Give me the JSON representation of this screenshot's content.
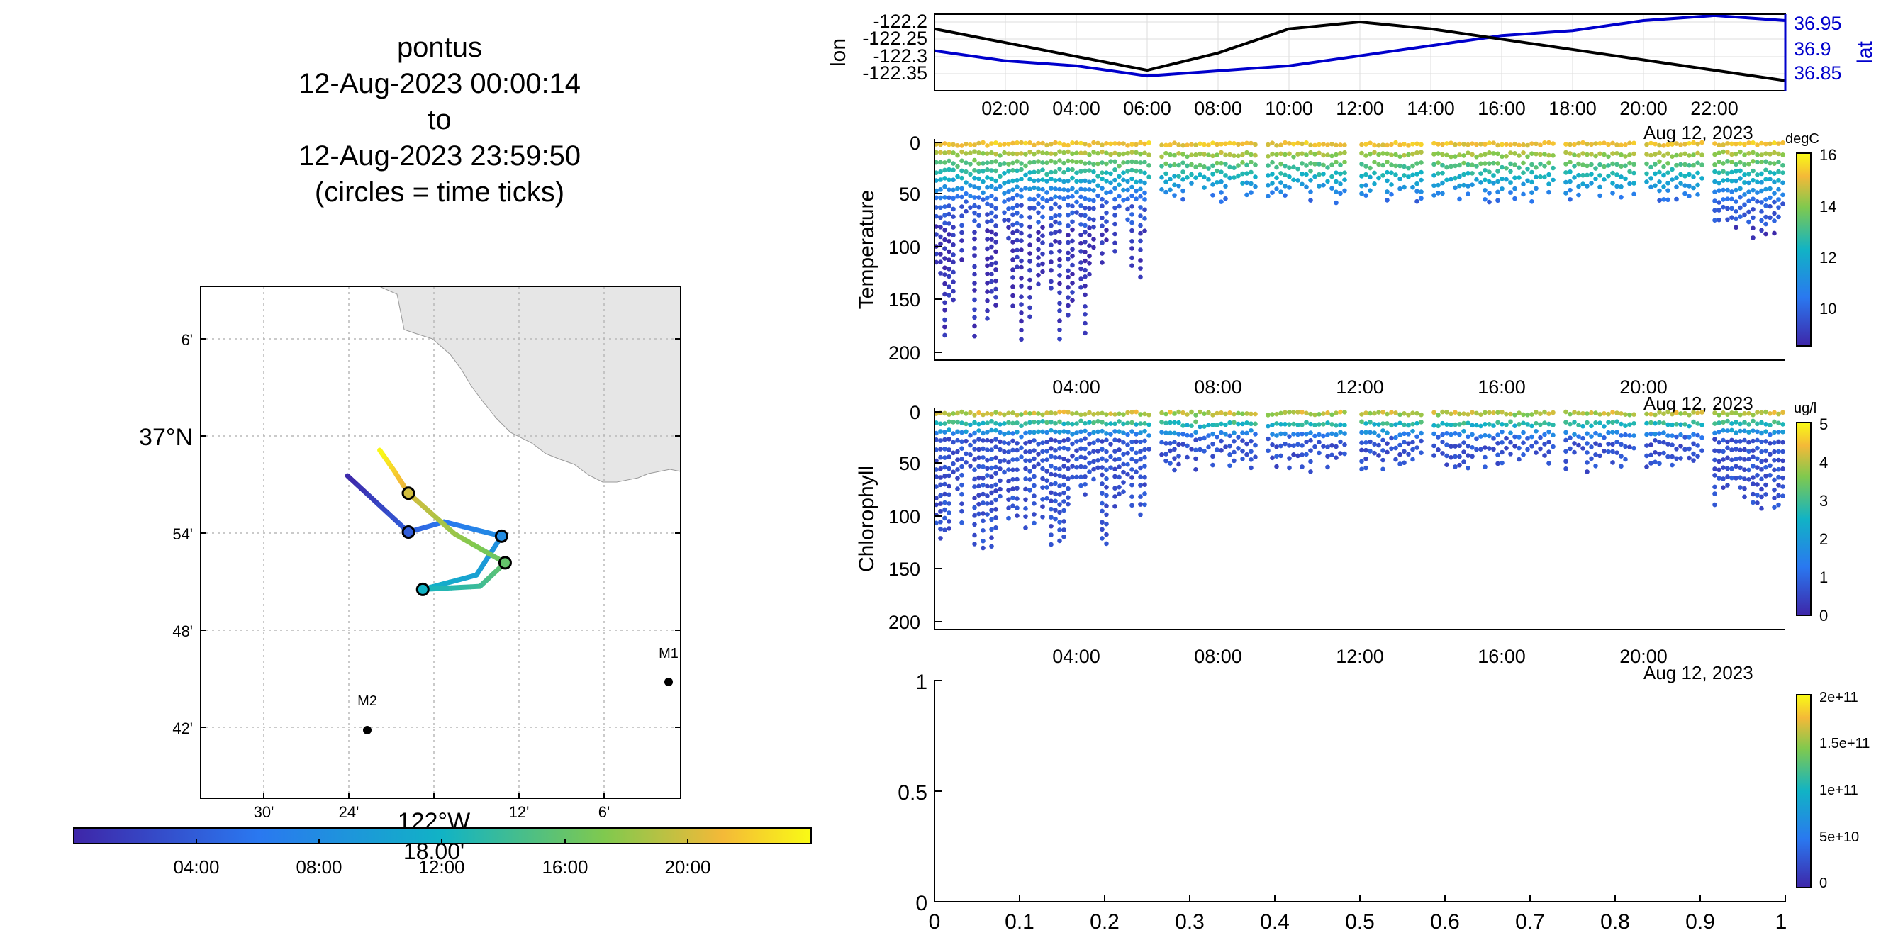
{
  "title": {
    "lines": [
      "pontus",
      "12-Aug-2023 00:00:14",
      "to",
      "12-Aug-2023 23:59:50",
      "(circles = time ticks)"
    ]
  },
  "map": {
    "lat_ticks": [
      "6'",
      "37°N",
      "54'",
      "48'",
      "42'"
    ],
    "lon_ticks": [
      "30'",
      "24'",
      "18'",
      "12'",
      "6'"
    ],
    "lon_main_label": "122°W",
    "moorings": [
      {
        "name": "M1",
        "lon": -121.9,
        "lat": 36.75
      },
      {
        "name": "M2",
        "lon": -122.35,
        "lat": 36.7
      }
    ],
    "coastline_color": "#e6e6e6",
    "track": [
      {
        "lon": -122.345,
        "lat": 36.945,
        "hour": 0.0
      },
      {
        "lon": -122.26,
        "lat": 36.89,
        "hour": 4.0
      },
      {
        "lon": -122.21,
        "lat": 36.9,
        "hour": 6.0
      },
      {
        "lon": -122.13,
        "lat": 36.886,
        "hour": 8.0
      },
      {
        "lon": -122.165,
        "lat": 36.848,
        "hour": 10.0
      },
      {
        "lon": -122.24,
        "lat": 36.834,
        "hour": 12.0
      },
      {
        "lon": -122.16,
        "lat": 36.837,
        "hour": 14.0
      },
      {
        "lon": -122.125,
        "lat": 36.86,
        "hour": 16.0
      },
      {
        "lon": -122.195,
        "lat": 36.888,
        "hour": 18.0
      },
      {
        "lon": -122.26,
        "lat": 36.928,
        "hour": 20.0
      },
      {
        "lon": -122.28,
        "lat": 36.95,
        "hour": 22.0
      },
      {
        "lon": -122.3,
        "lat": 36.97,
        "hour": 24.0
      }
    ],
    "time_tick_circles_hours": [
      4,
      8,
      12,
      16,
      20
    ]
  },
  "time_colorbar": {
    "tick_labels": [
      "04:00",
      "08:00",
      "12:00",
      "16:00",
      "20:00"
    ],
    "overlay_label": "18.00'"
  },
  "lonlat_panel": {
    "ylabel_left": "lon",
    "ylabel_right": "lat",
    "left_ticks": [
      "-122.2",
      "-122.25",
      "-122.3",
      "-122.35"
    ],
    "right_ticks": [
      "36.95",
      "36.9",
      "36.85"
    ],
    "x_ticks": [
      "02:00",
      "04:00",
      "06:00",
      "08:00",
      "10:00",
      "12:00",
      "14:00",
      "16:00",
      "18:00",
      "20:00",
      "22:00"
    ],
    "date_label": "Aug 12, 2023",
    "lon_color": "#000000",
    "lat_color": "#0000cc"
  },
  "temperature_panel": {
    "ylabel": "Temperature",
    "y_ticks": [
      "0",
      "50",
      "100",
      "150",
      "200"
    ],
    "x_ticks": [
      "04:00",
      "08:00",
      "12:00",
      "16:00",
      "20:00"
    ],
    "date_label": "Aug 12, 2023",
    "cbar_units": "degC",
    "cbar_ticks": [
      "16",
      "14",
      "12",
      "10"
    ]
  },
  "chlorophyll_panel": {
    "ylabel": "Chlorophyll",
    "y_ticks": [
      "0",
      "50",
      "100",
      "150",
      "200"
    ],
    "x_ticks": [
      "04:00",
      "08:00",
      "12:00",
      "16:00",
      "20:00"
    ],
    "date_label": "Aug 12, 2023",
    "cbar_units": "ug/l",
    "cbar_ticks": [
      "5",
      "4",
      "3",
      "2",
      "1",
      "0"
    ]
  },
  "empty_panel": {
    "y_ticks": [
      "1",
      "0.5",
      "0"
    ],
    "x_ticks": [
      "0",
      "0.1",
      "0.2",
      "0.3",
      "0.4",
      "0.5",
      "0.6",
      "0.7",
      "0.8",
      "0.9",
      "1"
    ],
    "cbar_ticks": [
      "2e+11",
      "1.5e+11",
      "1e+11",
      "5e+10",
      "0"
    ]
  },
  "chart_data": {
    "type": "line",
    "title": "pontus 12-Aug-2023 00:00:14 to 12-Aug-2023 23:59:50 (circles = time ticks)",
    "x": [
      0,
      2,
      4,
      6,
      8,
      10,
      12,
      14,
      16,
      18,
      20,
      22,
      24
    ],
    "series": [
      {
        "name": "lon",
        "values": [
          -122.22,
          -122.26,
          -122.3,
          -122.34,
          -122.29,
          -122.22,
          -122.2,
          -122.22,
          -122.25,
          -122.28,
          -122.31,
          -122.34,
          -122.37
        ]
      },
      {
        "name": "lat",
        "values": [
          36.89,
          36.87,
          36.86,
          36.84,
          36.85,
          36.86,
          36.88,
          36.9,
          36.92,
          36.93,
          36.95,
          36.96,
          36.95
        ]
      }
    ],
    "temperature": {
      "depth_range": [
        0,
        200
      ],
      "color_range": [
        8,
        16
      ],
      "units": "degC"
    },
    "chlorophyll": {
      "depth_range": [
        0,
        200
      ],
      "color_range": [
        0,
        5
      ],
      "units": "ug/l"
    }
  }
}
